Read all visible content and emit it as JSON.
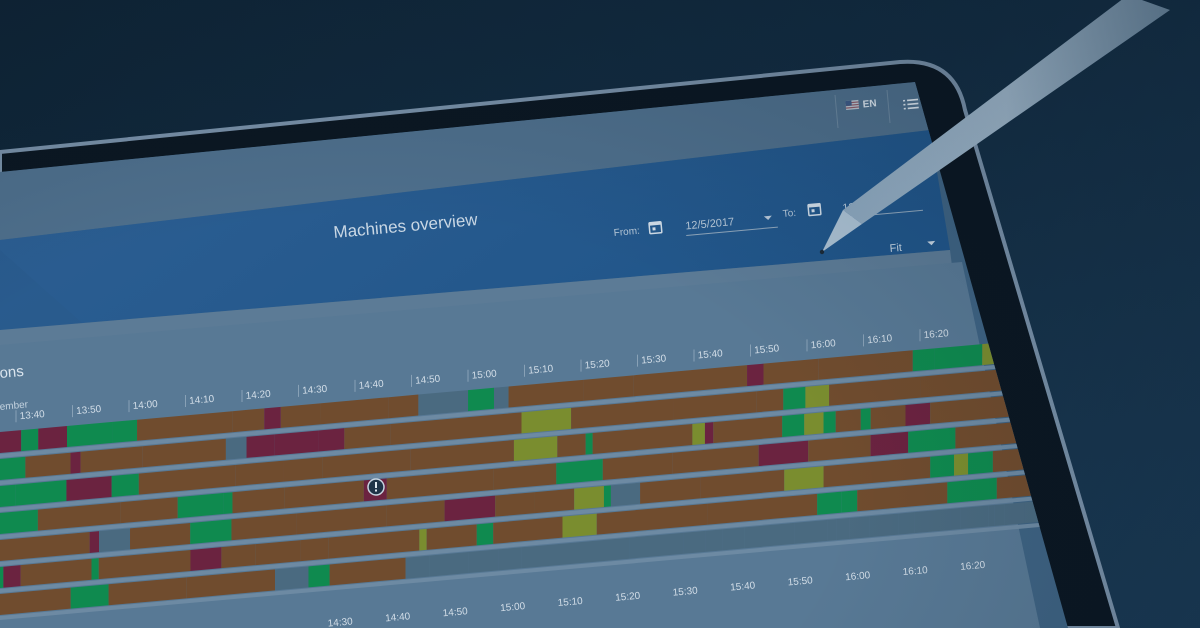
{
  "header": {
    "language": "EN",
    "title": "Machines overview",
    "from_label": "From:",
    "from_date": "12/5/2017",
    "to_label": "To:",
    "to_date": "12/",
    "zoom_value": "Fit"
  },
  "panel": {
    "title_fragment": "ons",
    "date_fragment": "ember"
  },
  "timeline": {
    "top_ticks": [
      "13:40",
      "13:50",
      "14:00",
      "14:10",
      "14:20",
      "14:30",
      "14:40",
      "14:50",
      "15:00",
      "15:10",
      "15:20",
      "15:30",
      "15:40",
      "15:50",
      "16:00",
      "16:10",
      "16:20"
    ],
    "bottom_ticks": [
      "14:30",
      "14:40",
      "14:50",
      "15:00",
      "15:10",
      "15:20",
      "15:30",
      "15:40",
      "15:50",
      "16:00",
      "16:10",
      "16:20"
    ]
  },
  "status_colors": {
    "running": "#0f8a4f",
    "idle": "#704c2e",
    "setup": "#7a8d2f",
    "error": "#6b2340",
    "offline": "#4a6a80"
  },
  "icons": {
    "flag": "us-flag-icon",
    "menu": "menu-icon",
    "calendar": "calendar-icon",
    "alert": "alert-icon"
  }
}
